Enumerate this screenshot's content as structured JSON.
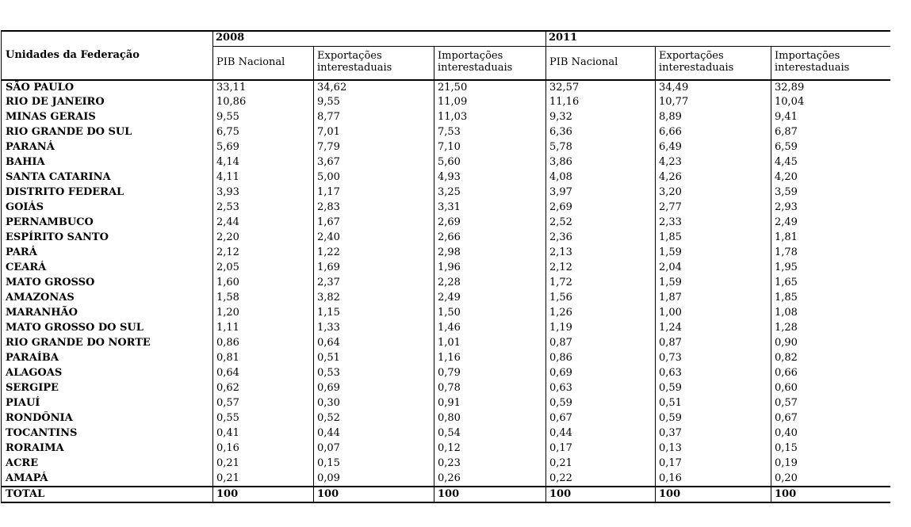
{
  "table": {
    "corner_header": "Unidades da Federação",
    "year_groups": [
      "2008",
      "2011"
    ],
    "sub_headers": [
      "PIB Nacional",
      "Exportações interestaduais",
      "Importações interestaduais"
    ],
    "rows": [
      {
        "name": "SÃO PAULO",
        "values": [
          "33,11",
          "34,62",
          "21,50",
          "32,57",
          "34,49",
          "32,89"
        ]
      },
      {
        "name": "RIO DE JANEIRO",
        "values": [
          "10,86",
          "9,55",
          "11,09",
          "11,16",
          "10,77",
          "10,04"
        ]
      },
      {
        "name": "MINAS GERAIS",
        "values": [
          "9,55",
          "8,77",
          "11,03",
          "9,32",
          "8,89",
          "9,41"
        ]
      },
      {
        "name": "RIO GRANDE DO SUL",
        "values": [
          "6,75",
          "7,01",
          "7,53",
          "6,36",
          "6,66",
          "6,87"
        ]
      },
      {
        "name": "PARANÁ",
        "values": [
          "5,69",
          "7,79",
          "7,10",
          "5,78",
          "6,49",
          "6,59"
        ]
      },
      {
        "name": "BAHIA",
        "values": [
          "4,14",
          "3,67",
          "5,60",
          "3,86",
          "4,23",
          "4,45"
        ]
      },
      {
        "name": "SANTA CATARINA",
        "values": [
          "4,11",
          "5,00",
          "4,93",
          "4,08",
          "4,26",
          "4,20"
        ]
      },
      {
        "name": "DISTRITO FEDERAL",
        "values": [
          "3,93",
          "1,17",
          "3,25",
          "3,97",
          "3,20",
          "3,59"
        ]
      },
      {
        "name": "GOIÁS",
        "values": [
          "2,53",
          "2,83",
          "3,31",
          "2,69",
          "2,77",
          "2,93"
        ]
      },
      {
        "name": "PERNAMBUCO",
        "values": [
          "2,44",
          "1,67",
          "2,69",
          "2,52",
          "2,33",
          "2,49"
        ]
      },
      {
        "name": "ESPÍRITO SANTO",
        "values": [
          "2,20",
          "2,40",
          "2,66",
          "2,36",
          "1,85",
          "1,81"
        ]
      },
      {
        "name": "PARÁ",
        "values": [
          "2,12",
          "1,22",
          "2,98",
          "2,13",
          "1,59",
          "1,78"
        ]
      },
      {
        "name": "CEARÁ",
        "values": [
          "2,05",
          "1,69",
          "1,96",
          "2,12",
          "2,04",
          "1,95"
        ]
      },
      {
        "name": "MATO GROSSO",
        "values": [
          "1,60",
          "2,37",
          "2,28",
          "1,72",
          "1,59",
          "1,65"
        ]
      },
      {
        "name": "AMAZONAS",
        "values": [
          "1,58",
          "3,82",
          "2,49",
          "1,56",
          "1,87",
          "1,85"
        ]
      },
      {
        "name": "MARANHÃO",
        "values": [
          "1,20",
          "1,15",
          "1,50",
          "1,26",
          "1,00",
          "1,08"
        ]
      },
      {
        "name": "MATO GROSSO DO SUL",
        "values": [
          "1,11",
          "1,33",
          "1,46",
          "1,19",
          "1,24",
          "1,28"
        ]
      },
      {
        "name": "RIO GRANDE DO NORTE",
        "values": [
          "0,86",
          "0,64",
          "1,01",
          "0,87",
          "0,87",
          "0,90"
        ]
      },
      {
        "name": "PARAÍBA",
        "values": [
          "0,81",
          "0,51",
          "1,16",
          "0,86",
          "0,73",
          "0,82"
        ]
      },
      {
        "name": "ALAGOAS",
        "values": [
          "0,64",
          "0,53",
          "0,79",
          "0,69",
          "0,63",
          "0,66"
        ]
      },
      {
        "name": "SERGIPE",
        "values": [
          "0,62",
          "0,69",
          "0,78",
          "0,63",
          "0,59",
          "0,60"
        ]
      },
      {
        "name": "PIAUÍ",
        "values": [
          "0,57",
          "0,30",
          "0,91",
          "0,59",
          "0,51",
          "0,57"
        ]
      },
      {
        "name": "RONDÔNIA",
        "values": [
          "0,55",
          "0,52",
          "0,80",
          "0,67",
          "0,59",
          "0,67"
        ]
      },
      {
        "name": "TOCANTINS",
        "values": [
          "0,41",
          "0,44",
          "0,54",
          "0,44",
          "0,37",
          "0,40"
        ]
      },
      {
        "name": "RORAIMA",
        "values": [
          "0,16",
          "0,07",
          "0,12",
          "0,17",
          "0,13",
          "0,15"
        ]
      },
      {
        "name": "ACRE",
        "values": [
          "0,21",
          "0,15",
          "0,23",
          "0,21",
          "0,17",
          "0,19"
        ]
      },
      {
        "name": "AMAPÁ",
        "values": [
          "0,21",
          "0,09",
          "0,26",
          "0,22",
          "0,16",
          "0,20"
        ]
      }
    ],
    "total": {
      "name": "TOTAL",
      "values": [
        "100",
        "100",
        "100",
        "100",
        "100",
        "100"
      ]
    }
  }
}
